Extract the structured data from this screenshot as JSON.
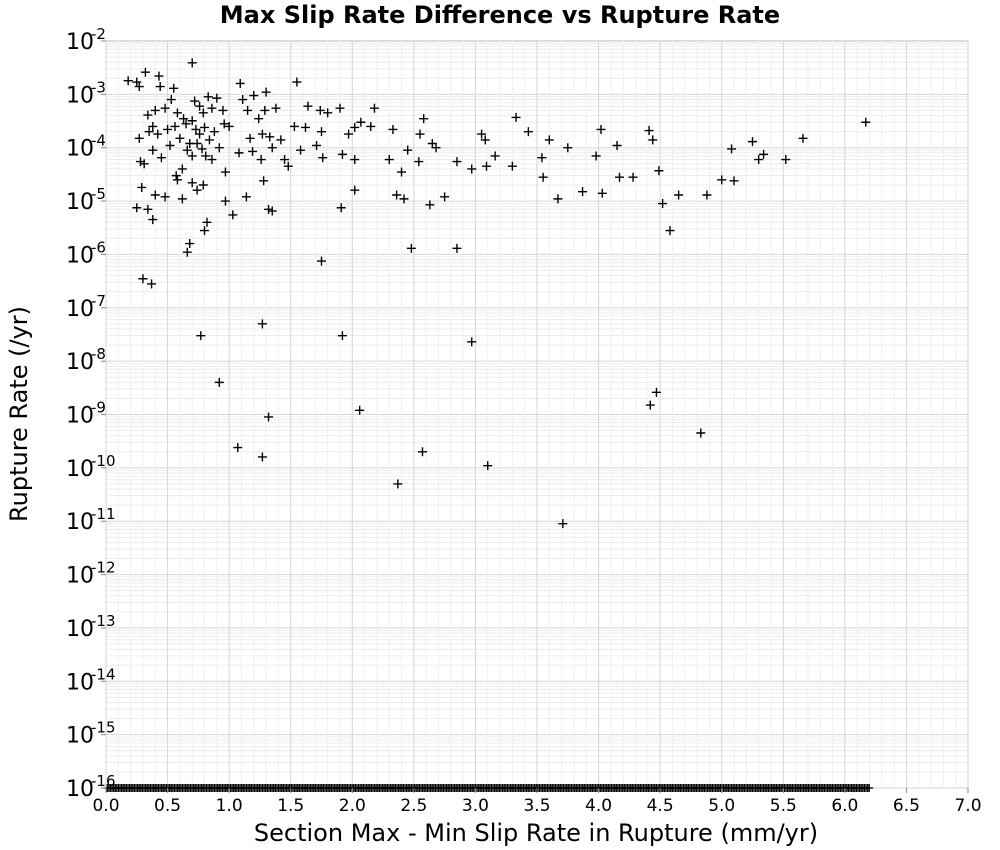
{
  "chart_data": {
    "type": "scatter",
    "title": "Max Slip Rate Difference vs Rupture Rate",
    "xlabel": "Section Max - Min Slip Rate in Rupture (mm/yr)",
    "ylabel": "Rupture Rate (/yr)",
    "xlim": [
      0.0,
      7.0
    ],
    "ylim": [
      1e-16,
      0.01
    ],
    "yscale": "log",
    "grid": true,
    "marker": "plus",
    "marker_color": "#000000",
    "x_ticks": [
      "0.0",
      "0.5",
      "1.0",
      "1.5",
      "2.0",
      "2.5",
      "3.0",
      "3.5",
      "4.0",
      "4.5",
      "5.0",
      "5.5",
      "6.0",
      "6.5",
      "7.0"
    ],
    "y_ticks": [
      {
        "base": "10",
        "exp": "-16"
      },
      {
        "base": "10",
        "exp": "-15"
      },
      {
        "base": "10",
        "exp": "-14"
      },
      {
        "base": "10",
        "exp": "-13"
      },
      {
        "base": "10",
        "exp": "-12"
      },
      {
        "base": "10",
        "exp": "-11"
      },
      {
        "base": "10",
        "exp": "-10"
      },
      {
        "base": "10",
        "exp": "-9"
      },
      {
        "base": "10",
        "exp": "-8"
      },
      {
        "base": "10",
        "exp": "-7"
      },
      {
        "base": "10",
        "exp": "-6"
      },
      {
        "base": "10",
        "exp": "-5"
      },
      {
        "base": "10",
        "exp": "-4"
      },
      {
        "base": "10",
        "exp": "-3"
      },
      {
        "base": "10",
        "exp": "-2"
      }
    ],
    "points": [
      [
        0.18,
        0.0018
      ],
      [
        0.25,
        0.0017
      ],
      [
        0.27,
        0.0014
      ],
      [
        0.32,
        0.0026
      ],
      [
        0.43,
        0.0022
      ],
      [
        0.44,
        0.0014
      ],
      [
        0.55,
        0.0013
      ],
      [
        0.7,
        0.0039
      ],
      [
        1.09,
        0.0016
      ],
      [
        1.3,
        0.0011
      ],
      [
        1.55,
        0.0017
      ],
      [
        0.34,
        0.00041
      ],
      [
        0.4,
        0.0005
      ],
      [
        0.48,
        0.00055
      ],
      [
        0.53,
        0.0008
      ],
      [
        0.58,
        0.00045
      ],
      [
        0.63,
        0.00035
      ],
      [
        0.7,
        0.00032
      ],
      [
        0.72,
        0.00075
      ],
      [
        0.76,
        0.0006
      ],
      [
        0.79,
        0.00045
      ],
      [
        0.83,
        0.0009
      ],
      [
        0.86,
        0.00055
      ],
      [
        0.9,
        0.00085
      ],
      [
        0.95,
        0.0005
      ],
      [
        1.11,
        0.0008
      ],
      [
        1.15,
        0.0005
      ],
      [
        1.2,
        0.00095
      ],
      [
        1.24,
        0.00035
      ],
      [
        1.29,
        0.0005
      ],
      [
        1.38,
        0.00055
      ],
      [
        1.64,
        0.0006
      ],
      [
        1.74,
        0.0005
      ],
      [
        1.8,
        0.00045
      ],
      [
        1.9,
        0.00055
      ],
      [
        2.18,
        0.00055
      ],
      [
        2.58,
        0.00035
      ],
      [
        3.33,
        0.00037
      ],
      [
        0.27,
        0.00015
      ],
      [
        0.35,
        0.0002
      ],
      [
        0.38,
        0.00025
      ],
      [
        0.42,
        0.00018
      ],
      [
        0.5,
        0.00022
      ],
      [
        0.56,
        0.00025
      ],
      [
        0.6,
        0.00015
      ],
      [
        0.65,
        0.00028
      ],
      [
        0.68,
        0.00012
      ],
      [
        0.73,
        0.00022
      ],
      [
        0.76,
        0.00018
      ],
      [
        0.8,
        0.00024
      ],
      [
        0.84,
        0.00014
      ],
      [
        0.88,
        0.0002
      ],
      [
        0.96,
        0.00028
      ],
      [
        1.0,
        0.00025
      ],
      [
        1.17,
        0.00015
      ],
      [
        1.27,
        0.00018
      ],
      [
        1.33,
        0.00016
      ],
      [
        1.42,
        0.00014
      ],
      [
        1.53,
        0.00025
      ],
      [
        1.62,
        0.00024
      ],
      [
        1.75,
        0.0002
      ],
      [
        1.97,
        0.00018
      ],
      [
        2.02,
        0.00024
      ],
      [
        2.07,
        0.0003
      ],
      [
        2.15,
        0.00025
      ],
      [
        2.33,
        0.00022
      ],
      [
        2.55,
        0.00018
      ],
      [
        2.65,
        0.00012
      ],
      [
        3.05,
        0.00018
      ],
      [
        3.08,
        0.00014
      ],
      [
        3.43,
        0.0002
      ],
      [
        3.6,
        0.00014
      ],
      [
        4.02,
        0.00022
      ],
      [
        4.41,
        0.00021
      ],
      [
        5.25,
        0.00013
      ],
      [
        5.66,
        0.00015
      ],
      [
        6.17,
        0.0003
      ],
      [
        0.28,
        5.5e-05
      ],
      [
        0.31,
        5e-05
      ],
      [
        0.38,
        9e-05
      ],
      [
        0.45,
        6.5e-05
      ],
      [
        0.52,
        0.00011
      ],
      [
        0.57,
        3e-05
      ],
      [
        0.62,
        4e-05
      ],
      [
        0.66,
        9e-05
      ],
      [
        0.7,
        7e-05
      ],
      [
        0.74,
        0.00012
      ],
      [
        0.78,
        9.5e-05
      ],
      [
        0.81,
        7e-05
      ],
      [
        0.86,
        6e-05
      ],
      [
        0.92,
        0.0001
      ],
      [
        0.97,
        3.5e-05
      ],
      [
        1.08,
        8e-05
      ],
      [
        1.19,
        8.5e-05
      ],
      [
        1.26,
        6e-05
      ],
      [
        1.35,
        0.0001
      ],
      [
        1.45,
        6e-05
      ],
      [
        1.48,
        4.5e-05
      ],
      [
        1.58,
        9e-05
      ],
      [
        1.71,
        0.00011
      ],
      [
        1.76,
        6.5e-05
      ],
      [
        1.92,
        7.5e-05
      ],
      [
        2.02,
        6e-05
      ],
      [
        2.3,
        6e-05
      ],
      [
        2.4,
        3.5e-05
      ],
      [
        2.45,
        9e-05
      ],
      [
        2.54,
        5.5e-05
      ],
      [
        2.68,
        0.0001
      ],
      [
        2.85,
        5.5e-05
      ],
      [
        2.97,
        4e-05
      ],
      [
        3.09,
        4.5e-05
      ],
      [
        3.16,
        7e-05
      ],
      [
        3.3,
        4.5e-05
      ],
      [
        3.54,
        6.5e-05
      ],
      [
        3.75,
        0.0001
      ],
      [
        3.98,
        7e-05
      ],
      [
        4.15,
        0.00011
      ],
      [
        4.44,
        0.00014
      ],
      [
        4.49,
        3.7e-05
      ],
      [
        5.08,
        9.5e-05
      ],
      [
        5.3,
        6e-05
      ],
      [
        5.34,
        7.5e-05
      ],
      [
        5.52,
        6e-05
      ],
      [
        0.25,
        7.5e-06
      ],
      [
        0.29,
        1.8e-05
      ],
      [
        0.34,
        7e-06
      ],
      [
        0.38,
        4.5e-06
      ],
      [
        0.4,
        1.3e-05
      ],
      [
        0.48,
        1.2e-05
      ],
      [
        0.58,
        2.5e-05
      ],
      [
        0.62,
        1.1e-05
      ],
      [
        0.7,
        2.2e-05
      ],
      [
        0.74,
        1.6e-05
      ],
      [
        0.79,
        2e-05
      ],
      [
        0.82,
        4e-06
      ],
      [
        0.8,
        2.8e-06
      ],
      [
        0.97,
        1e-05
      ],
      [
        1.03,
        5.5e-06
      ],
      [
        1.14,
        1.2e-05
      ],
      [
        1.28,
        2.4e-05
      ],
      [
        1.32,
        7e-06
      ],
      [
        1.35,
        6.5e-06
      ],
      [
        1.91,
        7.5e-06
      ],
      [
        2.02,
        1.6e-05
      ],
      [
        2.36,
        1.3e-05
      ],
      [
        2.42,
        1.1e-05
      ],
      [
        2.63,
        8.5e-06
      ],
      [
        2.75,
        1.2e-05
      ],
      [
        3.55,
        2.8e-05
      ],
      [
        3.67,
        1.1e-05
      ],
      [
        3.87,
        1.5e-05
      ],
      [
        4.03,
        1.4e-05
      ],
      [
        4.17,
        2.8e-05
      ],
      [
        4.28,
        2.8e-05
      ],
      [
        4.52,
        9e-06
      ],
      [
        4.65,
        1.3e-05
      ],
      [
        4.88,
        1.3e-05
      ],
      [
        5.0,
        2.5e-05
      ],
      [
        5.1,
        2.4e-05
      ],
      [
        0.66,
        1.1e-06
      ],
      [
        0.68,
        1.6e-06
      ],
      [
        1.75,
        7.5e-07
      ],
      [
        2.48,
        1.3e-06
      ],
      [
        2.85,
        1.3e-06
      ],
      [
        4.58,
        2.8e-06
      ],
      [
        0.3,
        3.5e-07
      ],
      [
        0.37,
        2.8e-07
      ],
      [
        0.77,
        3e-08
      ],
      [
        1.27,
        5e-08
      ],
      [
        1.92,
        3e-08
      ],
      [
        2.97,
        2.3e-08
      ],
      [
        0.92,
        4e-09
      ],
      [
        1.32,
        9e-10
      ],
      [
        2.06,
        1.2e-09
      ],
      [
        4.42,
        1.5e-09
      ],
      [
        4.47,
        2.6e-09
      ],
      [
        4.83,
        4.5e-10
      ],
      [
        1.07,
        2.4e-10
      ],
      [
        1.27,
        1.6e-10
      ],
      [
        2.37,
        5e-11
      ],
      [
        2.57,
        2e-10
      ],
      [
        3.1,
        1.1e-10
      ],
      [
        3.71,
        9e-12
      ]
    ],
    "floor_band": {
      "y": 1e-16,
      "x_min": 0.0,
      "x_max": 6.2
    }
  }
}
